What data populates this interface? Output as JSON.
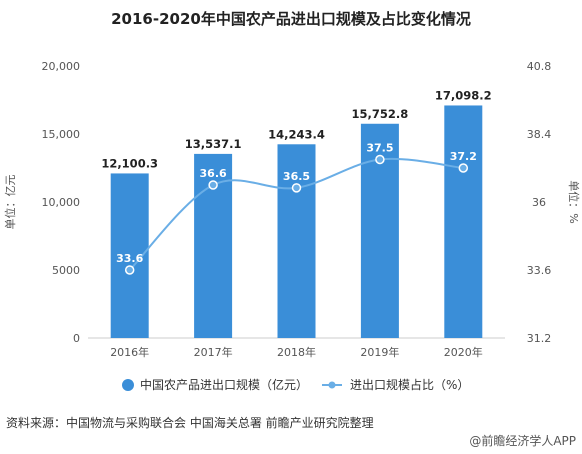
{
  "chart_data": {
    "type": "bar",
    "title": "2016-2020年中国农产品进出口规模及占比变化情况",
    "categories": [
      "2016年",
      "2017年",
      "2018年",
      "2019年",
      "2020年"
    ],
    "series": [
      {
        "name": "中国农产品进出口规模（亿元）",
        "type": "bar",
        "axis": "left",
        "values": [
          12100.3,
          13537.1,
          14243.4,
          15752.8,
          17098.2
        ],
        "labels": [
          "12,100.3",
          "13,537.1",
          "14,243.4",
          "15,752.8",
          "17,098.2"
        ],
        "color": "#3a8ed8"
      },
      {
        "name": "进出口规模占比（%）",
        "type": "line",
        "axis": "right",
        "values": [
          33.6,
          36.6,
          36.5,
          37.5,
          37.2
        ],
        "labels": [
          "33.6",
          "36.6",
          "36.5",
          "37.5",
          "37.2"
        ],
        "color": "#6aaee6"
      }
    ],
    "y_left": {
      "label": "单位：亿元",
      "ylim": [
        0,
        20000
      ],
      "ticks": [
        "0",
        "5000",
        "10,000",
        "15,000",
        "20,000"
      ]
    },
    "y_right": {
      "label": "单位：%",
      "ylim": [
        31.2,
        40.8
      ],
      "ticks": [
        "31.2",
        "33.6",
        "36",
        "38.4",
        "40.8"
      ]
    },
    "grid": false,
    "legend": "bottom"
  },
  "source_text": "资料来源：中国物流与采购联合会 中国海关总署 前瞻产业研究院整理",
  "credit_text": "@前瞻经济学人APP"
}
